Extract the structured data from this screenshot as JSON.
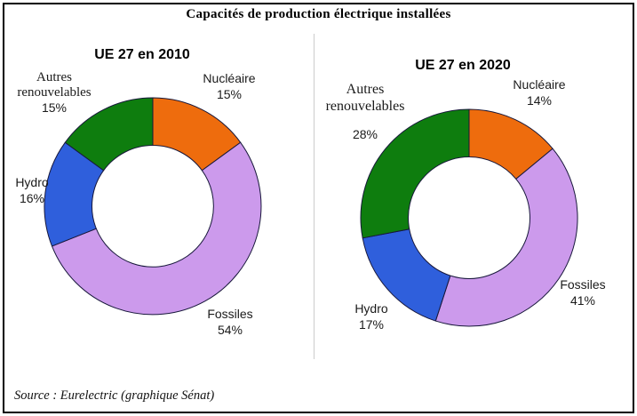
{
  "title": "Capacités de production électrique installées",
  "source": "Source : Eurelectric (graphique Sénat)",
  "style": {
    "slice_outline_color": "#17173a",
    "divider_color": "#cccccc",
    "border_color": "#000000",
    "background_color": "#ffffff"
  },
  "chart_data": [
    {
      "type": "donut",
      "title": "UE 27 en 2010",
      "unit": "%",
      "start": "top",
      "direction": "clockwise",
      "inner_radius_ratio": 0.56,
      "legend_position": "labels-around-ring",
      "segments": [
        {
          "label": "Nucléaire",
          "value": 15,
          "pct_label": "15%",
          "color": "#ee6c0d"
        },
        {
          "label": "Fossiles",
          "value": 54,
          "pct_label": "54%",
          "color": "#cc9aec"
        },
        {
          "label": "Hydro",
          "value": 16,
          "pct_label": "16%",
          "color": "#2f5fdc"
        },
        {
          "label": "Autres renouvelables",
          "value": 15,
          "pct_label": "15%",
          "color": "#0e7d0e"
        }
      ]
    },
    {
      "type": "donut",
      "title": "UE 27 en 2020",
      "unit": "%",
      "start": "top",
      "direction": "clockwise",
      "inner_radius_ratio": 0.56,
      "legend_position": "labels-around-ring",
      "segments": [
        {
          "label": "Nucléaire",
          "value": 14,
          "pct_label": "14%",
          "color": "#ee6c0d"
        },
        {
          "label": "Fossiles",
          "value": 41,
          "pct_label": "41%",
          "color": "#cc9aec"
        },
        {
          "label": "Hydro",
          "value": 17,
          "pct_label": "17%",
          "color": "#2f5fdc"
        },
        {
          "label": "Autres renouvelables",
          "value": 28,
          "pct_label": "28%",
          "color": "#0e7d0e"
        }
      ]
    }
  ]
}
